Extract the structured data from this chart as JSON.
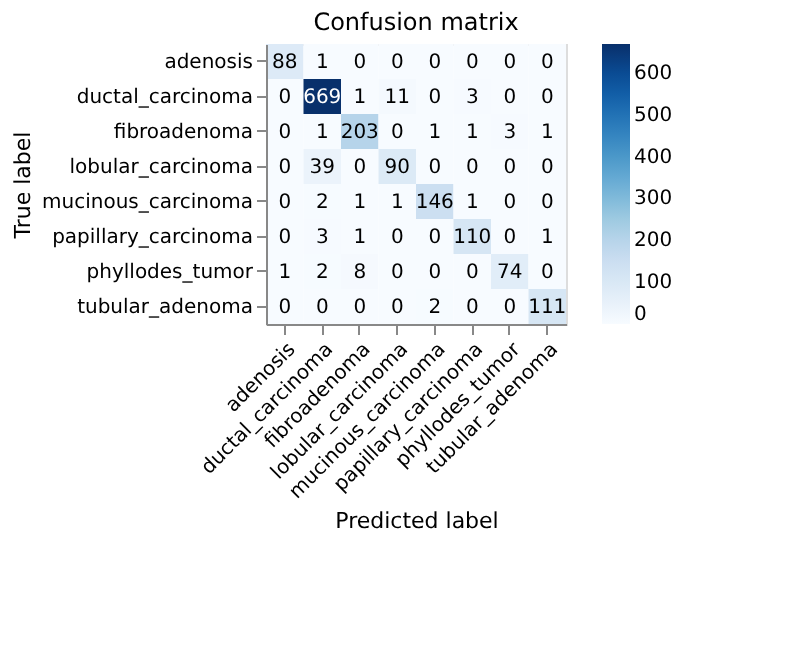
{
  "chart_data": {
    "type": "heatmap",
    "title": "Confusion matrix",
    "xlabel": "Predicted label",
    "ylabel": "True label",
    "categories": [
      "adenosis",
      "ductal_carcinoma",
      "fibroadenoma",
      "lobular_carcinoma",
      "mucinous_carcinoma",
      "papillary_carcinoma",
      "phyllodes_tumor",
      "tubular_adenoma"
    ],
    "y_categories": [
      "adenosis",
      "ductal_carcinoma",
      "fibroadenoma",
      "lobular_carcinoma",
      "mucinous_carcinoma",
      "papillary_carcinoma",
      "phyllodes_tumor",
      "tubular_adenoma"
    ],
    "cells": [
      [
        88,
        1,
        0,
        0,
        0,
        0,
        0,
        0
      ],
      [
        0,
        669,
        1,
        11,
        0,
        3,
        0,
        0
      ],
      [
        0,
        1,
        203,
        0,
        1,
        1,
        3,
        1
      ],
      [
        0,
        39,
        0,
        90,
        0,
        0,
        0,
        0
      ],
      [
        0,
        2,
        1,
        1,
        146,
        1,
        0,
        0
      ],
      [
        0,
        3,
        1,
        0,
        0,
        110,
        0,
        1
      ],
      [
        1,
        2,
        8,
        0,
        0,
        0,
        74,
        0
      ],
      [
        0,
        0,
        0,
        0,
        2,
        0,
        0,
        111
      ]
    ],
    "clim": [
      0,
      669
    ],
    "cticks": [
      0,
      100,
      200,
      300,
      400,
      500,
      600
    ],
    "data_labels": true,
    "grid": false
  }
}
